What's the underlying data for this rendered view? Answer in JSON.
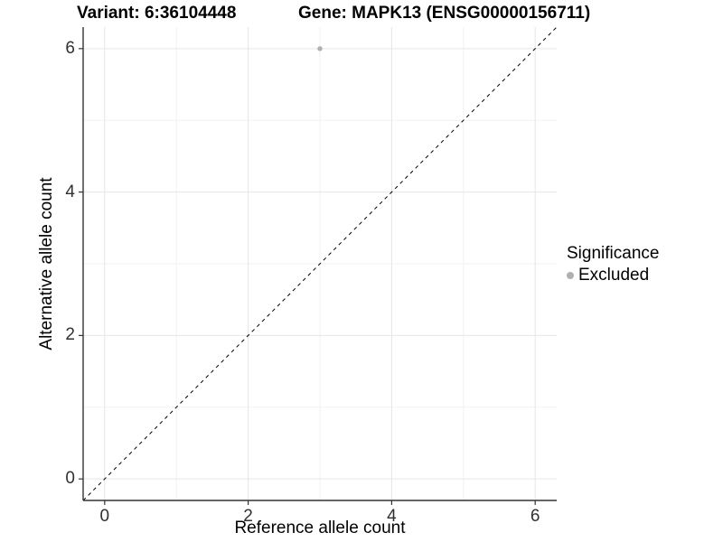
{
  "header": {
    "variant_title": "Variant: 6:36104448",
    "gene_title": "Gene: MAPK13 (ENSG00000156711)"
  },
  "axes": {
    "x_title": "Reference allele count",
    "y_title": "Alternative allele count"
  },
  "legend": {
    "title": "Significance",
    "items": [
      {
        "label": "Excluded",
        "color": "#b0b0b0"
      }
    ]
  },
  "chart_data": {
    "type": "scatter",
    "title": "Variant: 6:36104448   Gene: MAPK13 (ENSG00000156711)",
    "xlabel": "Reference allele count",
    "ylabel": "Alternative allele count",
    "xlim": [
      -0.3,
      6.3
    ],
    "ylim": [
      -0.3,
      6.3
    ],
    "x_major_ticks": [
      0,
      2,
      4,
      6
    ],
    "y_major_ticks": [
      0,
      2,
      4,
      6
    ],
    "x_minor_ticks": [
      1,
      3,
      5
    ],
    "y_minor_ticks": [
      1,
      3,
      5
    ],
    "grid": true,
    "legend_position": "right",
    "series": [
      {
        "name": "Excluded",
        "color": "#b0b0b0",
        "points": [
          {
            "x": 3,
            "y": 6
          }
        ]
      }
    ],
    "reference_line": {
      "type": "identity",
      "style": "dashed",
      "color": "#000000"
    },
    "colors": {
      "grid_major": "#e6e6e6",
      "grid_minor": "#f2f2f2",
      "axis_line": "#333333",
      "tick_text": "#303030"
    }
  }
}
